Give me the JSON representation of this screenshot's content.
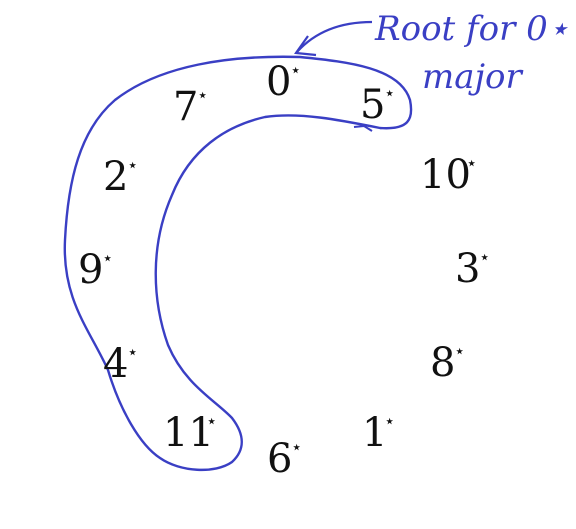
{
  "diagram": {
    "nodes": [
      {
        "id": "n0",
        "label": "0",
        "mark": "⋆"
      },
      {
        "id": "n5",
        "label": "5",
        "mark": "⋆"
      },
      {
        "id": "n10",
        "label": "10",
        "mark": "⋆"
      },
      {
        "id": "n3",
        "label": "3",
        "mark": "⋆"
      },
      {
        "id": "n8",
        "label": "8",
        "mark": "⋆"
      },
      {
        "id": "n1",
        "label": "1",
        "mark": "⋆"
      },
      {
        "id": "n6",
        "label": "6",
        "mark": "⋆"
      },
      {
        "id": "n11",
        "label": "11",
        "mark": "⋆"
      },
      {
        "id": "n4",
        "label": "4",
        "mark": "⋆"
      },
      {
        "id": "n9",
        "label": "9",
        "mark": "⋆"
      },
      {
        "id": "n2",
        "label": "2",
        "mark": "⋆"
      },
      {
        "id": "n7",
        "label": "7",
        "mark": "⋆"
      }
    ],
    "annotation": {
      "line1": "Root for 0⋆",
      "line2": "major",
      "color": "#3a3fc4"
    },
    "ink_color": "#3a3fc4"
  }
}
